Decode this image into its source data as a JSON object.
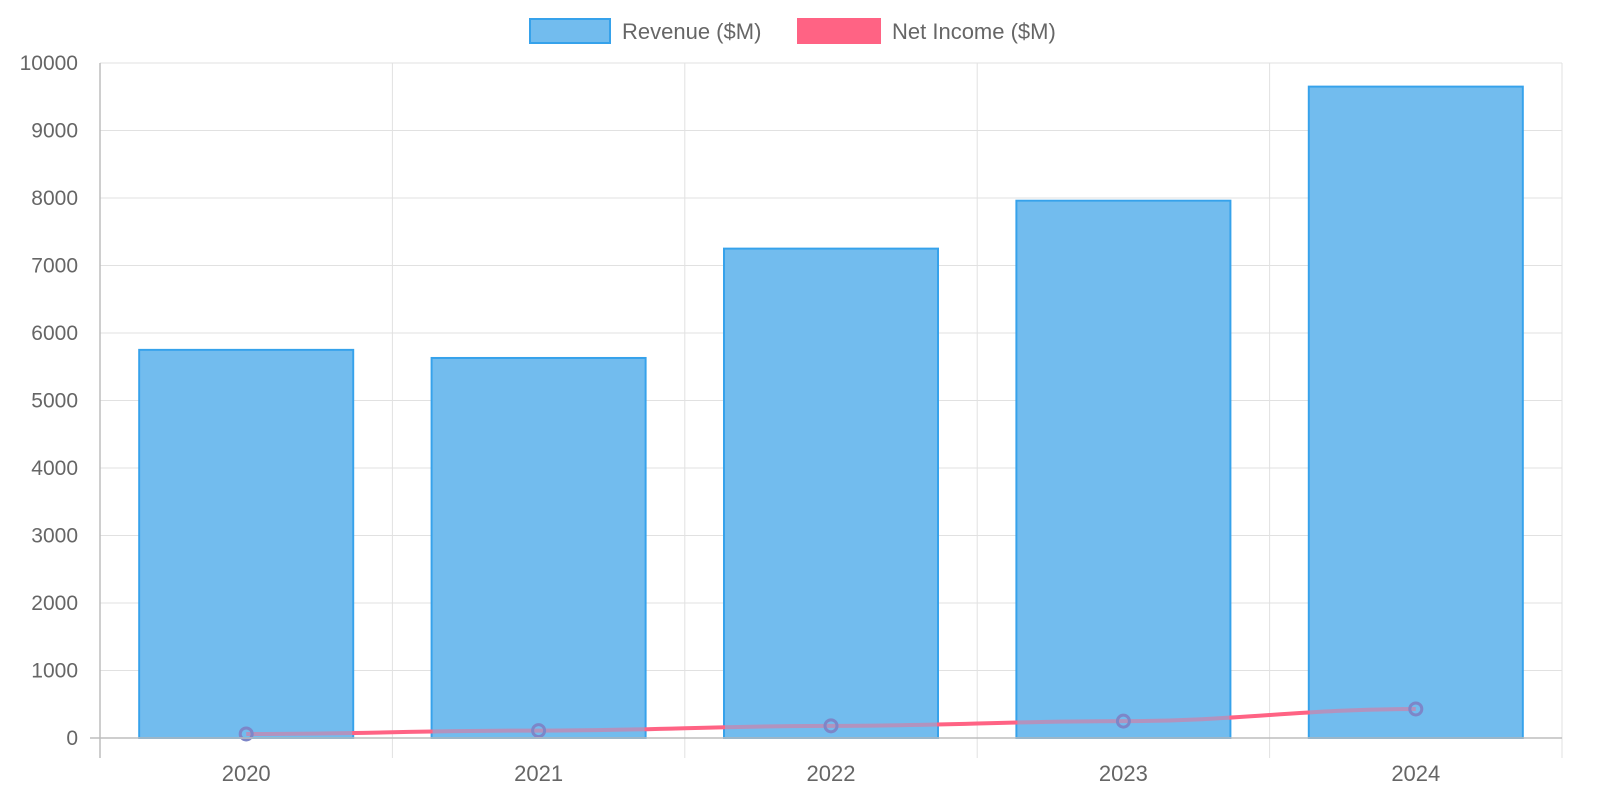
{
  "chart_data": {
    "type": "bar",
    "categories": [
      "2020",
      "2021",
      "2022",
      "2023",
      "2024"
    ],
    "series": [
      {
        "name": "Revenue ($M)",
        "type": "bar",
        "values": [
          5750,
          5630,
          7250,
          7960,
          9650
        ],
        "fill": "#72bcee",
        "stroke": "#36a2eb"
      },
      {
        "name": "Net Income ($M)",
        "type": "line",
        "values": [
          60,
          110,
          180,
          250,
          430
        ],
        "color": "#ff6384",
        "point_color": "#7d86c8"
      }
    ],
    "ylim": [
      0,
      10000
    ],
    "yticks": [
      "0",
      "1000",
      "2000",
      "3000",
      "4000",
      "5000",
      "6000",
      "7000",
      "8000",
      "9000",
      "10000"
    ],
    "grid": true,
    "legend_position": "top-center"
  }
}
